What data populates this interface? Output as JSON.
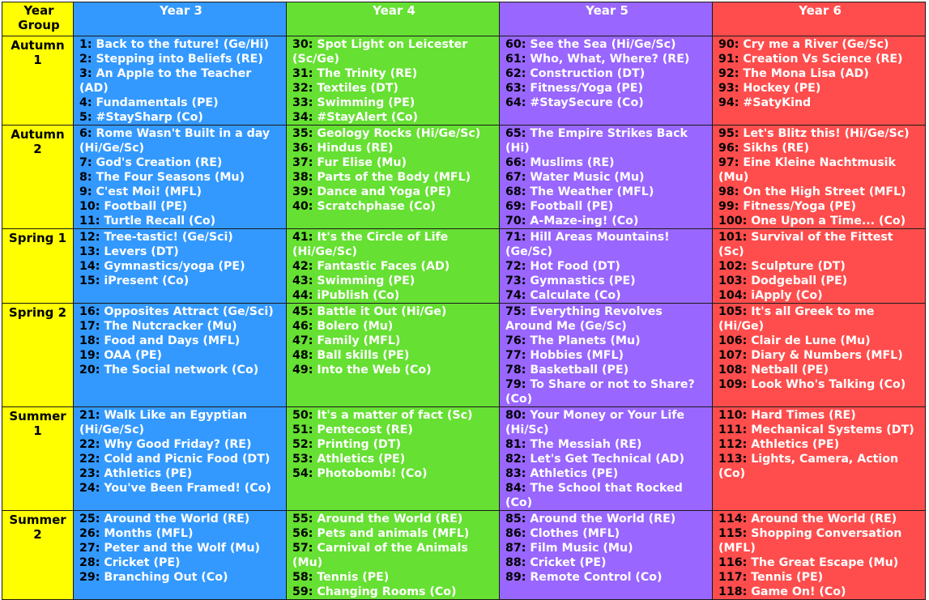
{
  "header": {
    "corner_label": "Year Group",
    "years": [
      "Year 3",
      "Year 4",
      "Year 5",
      "Year 6"
    ]
  },
  "colors": {
    "year3": "#3399ff",
    "year4": "#66e033",
    "year5": "#9966ff",
    "year6": "#ff4d4d",
    "term_column": "#ffff00"
  },
  "rows": [
    {
      "term": [
        "Autumn",
        "1"
      ],
      "cells": [
        [
          {
            "n": "1:",
            "t": "Back to the future! (Ge/Hi)"
          },
          {
            "n": "2:",
            "t": "Stepping into Beliefs (RE)"
          },
          {
            "n": "3:",
            "t": "An Apple to the Teacher (AD)"
          },
          {
            "n": "4:",
            "t": "Fundamentals (PE)"
          },
          {
            "n": "5:",
            "t": "#StaySharp (Co)"
          }
        ],
        [
          {
            "n": "30:",
            "t": "Spot Light on Leicester (Sc/Ge)"
          },
          {
            "n": "31:",
            "t": "The Trinity (RE)"
          },
          {
            "n": "32:",
            "t": "Textiles (DT)"
          },
          {
            "n": "33:",
            "t": "Swimming (PE)"
          },
          {
            "n": "34:",
            "t": "#StayAlert (Co)"
          }
        ],
        [
          {
            "n": "60:",
            "t": "See the Sea (Hi/Ge/Sc)"
          },
          {
            "n": "61:",
            "t": "Who, What, Where? (RE)"
          },
          {
            "n": "62:",
            "t": "Construction (DT)"
          },
          {
            "n": "63:",
            "t": "Fitness/Yoga (PE)"
          },
          {
            "n": "64:",
            "t": "#StaySecure (Co)"
          }
        ],
        [
          {
            "n": "90:",
            "t": "Cry me a River (Ge/Sc)"
          },
          {
            "n": "91:",
            "t": "Creation Vs Science (RE)"
          },
          {
            "n": "92:",
            "t": "The Mona Lisa (AD)"
          },
          {
            "n": "93:",
            "t": "Hockey (PE)"
          },
          {
            "n": "94:",
            "t": "#SatyKind"
          }
        ]
      ]
    },
    {
      "term": [
        "Autumn",
        "2"
      ],
      "cells": [
        [
          {
            "n": "6:",
            "t": "Rome Wasn't Built in a day (Hi/Ge/Sc)"
          },
          {
            "n": "7:",
            "t": "God's Creation (RE)"
          },
          {
            "n": "8:",
            "t": "The Four Seasons (Mu)"
          },
          {
            "n": "9:",
            "t": "C'est Moi! (MFL)"
          },
          {
            "n": "10:",
            "t": "Football (PE)"
          },
          {
            "n": "11:",
            "t": "Turtle Recall (Co)"
          }
        ],
        [
          {
            "n": "35:",
            "t": "Geology Rocks (Hi/Ge/Sc)"
          },
          {
            "n": "36:",
            "t": "Hindus (RE)"
          },
          {
            "n": "37:",
            "t": "Fur Elise (Mu)"
          },
          {
            "n": "38:",
            "t": "Parts of the Body (MFL)"
          },
          {
            "n": "39:",
            "t": "Dance and Yoga (PE)"
          },
          {
            "n": "40:",
            "t": "Scratchphase (Co)"
          }
        ],
        [
          {
            "n": "65:",
            "t": "The Empire Strikes Back (Hi)"
          },
          {
            "n": "66:",
            "t": "Muslims (RE)"
          },
          {
            "n": "67:",
            "t": "Water Music (Mu)"
          },
          {
            "n": "68:",
            "t": "The Weather (MFL)"
          },
          {
            "n": "69:",
            "t": "Football (PE)"
          },
          {
            "n": "70:",
            "t": "A-Maze-ing! (Co)"
          }
        ],
        [
          {
            "n": "95:",
            "t": "Let's Blitz this! (Hi/Ge/Sc)"
          },
          {
            "n": "96:",
            "t": "Sikhs (RE)"
          },
          {
            "n": "97:",
            "t": "Eine Kleine Nachtmusik (Mu)"
          },
          {
            "n": "98:",
            "t": "On the High Street (MFL)"
          },
          {
            "n": "99:",
            "t": "Fitness/Yoga (PE)"
          },
          {
            "n": "100:",
            "t": "One Upon a Time... (Co)"
          }
        ]
      ]
    },
    {
      "term": [
        "Spring 1"
      ],
      "cells": [
        [
          {
            "n": "12:",
            "t": "Tree-tastic!  (Ge/Sci)"
          },
          {
            "n": "13:",
            "t": "Levers (DT)"
          },
          {
            "n": "14:",
            "t": "Gymnastics/yoga (PE)"
          },
          {
            "n": "15:",
            "t": "iPresent (Co)"
          }
        ],
        [
          {
            "n": "41:",
            "t": "It's the Circle of Life (Hi/Ge/Sc)"
          },
          {
            "n": "42:",
            "t": "Fantastic Faces (AD)"
          },
          {
            "n": "43:",
            "t": "Swimming (PE)"
          },
          {
            "n": "44:",
            "t": "iPublish (Co)"
          }
        ],
        [
          {
            "n": "71:",
            "t": "Hill Areas Mountains! (Ge/Sc)"
          },
          {
            "n": "72:",
            "t": "Hot Food (DT)"
          },
          {
            "n": "73:",
            "t": "Gymnastics (PE)"
          },
          {
            "n": "74:",
            "t": "Calculate (Co)"
          }
        ],
        [
          {
            "n": "101:",
            "t": "Survival of the Fittest (Sc)"
          },
          {
            "n": "102:",
            "t": "Sculpture (DT)"
          },
          {
            "n": "103:",
            "t": "Dodgeball (PE)"
          },
          {
            "n": "104:",
            "t": "iApply (Co)"
          }
        ]
      ]
    },
    {
      "term": [
        "Spring 2"
      ],
      "cells": [
        [
          {
            "n": "16:",
            "t": "Opposites Attract (Ge/Sci)"
          },
          {
            "n": "17:",
            "t": "The Nutcracker (Mu)"
          },
          {
            "n": "18:",
            "t": "Food and Days (MFL)"
          },
          {
            "n": "19:",
            "t": "OAA (PE)"
          },
          {
            "n": "20:",
            "t": "The Social network (Co)"
          }
        ],
        [
          {
            "n": "45:",
            "t": "Battle it Out (Hi/Ge)"
          },
          {
            "n": "46:",
            "t": "Bolero (Mu)"
          },
          {
            "n": "47:",
            "t": "Family (MFL)"
          },
          {
            "n": "48:",
            "t": "Ball skills (PE)"
          },
          {
            "n": "49:",
            "t": "Into the Web (Co)"
          }
        ],
        [
          {
            "n": "75:",
            "t": "Everything Revolves Around Me (Ge/Sc)"
          },
          {
            "n": "76:",
            "t": "The Planets (Mu)"
          },
          {
            "n": "77:",
            "t": "Hobbies (MFL)"
          },
          {
            "n": "78:",
            "t": "Basketball (PE)"
          },
          {
            "n": "79:",
            "t": "To Share or not to Share? (Co)"
          }
        ],
        [
          {
            "n": "105:",
            "t": "It's all Greek to me (Hi/Ge)"
          },
          {
            "n": "106:",
            "t": "Clair de Lune (Mu)"
          },
          {
            "n": "107:",
            "t": "Diary & Numbers (MFL)"
          },
          {
            "n": "108:",
            "t": "Netball (PE)"
          },
          {
            "n": "109:",
            "t": "Look Who's Talking (Co)"
          }
        ]
      ]
    },
    {
      "term": [
        "Summer",
        "1"
      ],
      "cells": [
        [
          {
            "n": "21:",
            "t": "Walk Like an Egyptian (Hi/Ge/Sc)"
          },
          {
            "n": "22:",
            "t": "Why Good Friday? (RE)"
          },
          {
            "n": "22:",
            "t": "Cold and Picnic Food (DT)"
          },
          {
            "n": "23:",
            "t": "Athletics (PE)"
          },
          {
            "n": "24:",
            "t": "You've Been Framed! (Co)"
          }
        ],
        [
          {
            "n": "50:",
            "t": "It's a matter of fact (Sc)"
          },
          {
            "n": "51:",
            "t": "Pentecost (RE)"
          },
          {
            "n": "52:",
            "t": "Printing (DT)"
          },
          {
            "n": "53:",
            "t": "Athletics (PE)"
          },
          {
            "n": "54:",
            "t": "Photobomb! (Co)"
          }
        ],
        [
          {
            "n": "80:",
            "t": "Your Money or Your Life (Hi/Sc)"
          },
          {
            "n": "81:",
            "t": "The Messiah (RE)"
          },
          {
            "n": "82:",
            "t": "Let's Get Technical (AD)"
          },
          {
            "n": "83:",
            "t": "Athletics (PE)"
          },
          {
            "n": "84:",
            "t": "The School that Rocked (Co)"
          }
        ],
        [
          {
            "n": "110:",
            "t": "Hard Times (RE)"
          },
          {
            "n": "111:",
            "t": "Mechanical Systems (DT)"
          },
          {
            "n": "112:",
            "t": "Athletics (PE)"
          },
          {
            "n": "113:",
            "t": "Lights, Camera, Action (Co)"
          }
        ]
      ]
    },
    {
      "term": [
        "Summer",
        "2"
      ],
      "cells": [
        [
          {
            "n": "25:",
            "t": "Around the World (RE)"
          },
          {
            "n": "26:",
            "t": "Months (MFL)"
          },
          {
            "n": "27:",
            "t": "Peter and the Wolf (Mu)"
          },
          {
            "n": "28:",
            "t": "Cricket (PE)"
          },
          {
            "n": "29:",
            "t": "Branching Out (Co)"
          }
        ],
        [
          {
            "n": "55:",
            "t": "Around the World (RE)"
          },
          {
            "n": "56:",
            "t": "Pets and animals (MFL)"
          },
          {
            "n": "57:",
            "t": "Carnival of the Animals (Mu)"
          },
          {
            "n": "58:",
            "t": "Tennis (PE)"
          },
          {
            "n": "59:",
            "t": "Changing Rooms (Co)"
          }
        ],
        [
          {
            "n": "85:",
            "t": "Around the World (RE)"
          },
          {
            "n": "86:",
            "t": "Clothes (MFL)"
          },
          {
            "n": "87:",
            "t": "Film Music (Mu)"
          },
          {
            "n": "88:",
            "t": "Cricket (PE)"
          },
          {
            "n": "89:",
            "t": "Remote Control (Co)"
          }
        ],
        [
          {
            "n": "114:",
            "t": "Around the World (RE)"
          },
          {
            "n": "115:",
            "t": "Shopping Conversation (MFL)"
          },
          {
            "n": "116:",
            "t": "The Great Escape (Mu)"
          },
          {
            "n": "117:",
            "t": "Tennis (PE)"
          },
          {
            "n": "118:",
            "t": "Game On! (Co)"
          }
        ]
      ]
    }
  ]
}
